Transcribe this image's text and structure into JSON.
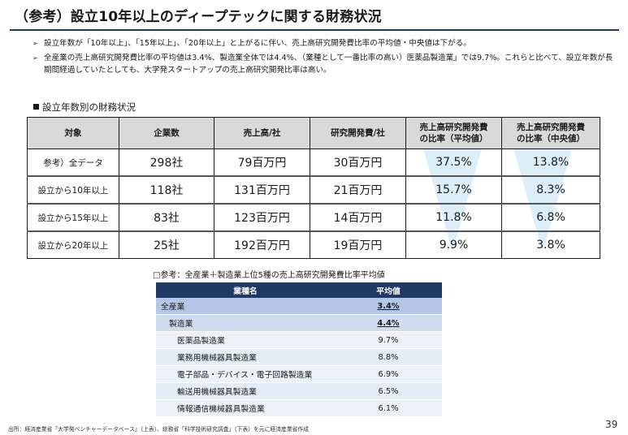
{
  "title": "（参考）設立10年以上のディープテックに関する財務状況",
  "bullets": [
    {
      "marker": "➢",
      "text": "設立年数が「10年以上」、「15年以上」、「20年以上」と上がるに伴い、売上高研究開発費比率の平均値・中央値は下がる。"
    },
    {
      "marker": "➢",
      "text": "全産業の売上高研究開発費比率の平均値は3.4%、製造業全体では4.4%、（業種として一番比率の高い）医薬品製造業」では9.7%。これらと比べて、設立年数が長期間経過していたとしても、大学発スタートアップの売上高研究開発比率は高い。"
    }
  ],
  "section_label": "設立年数別の財務状況",
  "main_table": {
    "headers": [
      "対象",
      "企業数",
      "売上高/社",
      "研究開発費/社",
      "売上高研究開発費\nの比率（平均値）",
      "売上高研究開発費\nの比率（中央値）"
    ],
    "rows": [
      [
        "参考）全データ",
        "298社",
        "79百万円",
        "30百万円",
        "37.5%",
        "13.8%"
      ],
      [
        "設立から10年以上",
        "118社",
        "131百万円",
        "21百万円",
        "15.7%",
        "8.3%"
      ],
      [
        "設立から15年以上",
        "83社",
        "123百万円",
        "14百万円",
        "11.8%",
        "6.8%"
      ],
      [
        "設立から20年以上",
        "25社",
        "192百万円",
        "19百万円",
        "9.9%",
        "3.8%"
      ]
    ]
  },
  "sub_title": "□参考：全産業＋製造業上位5種の売上高研究開発費比率平均値",
  "industry_table": {
    "headers": [
      "業種名",
      "平均値"
    ],
    "rows": [
      {
        "name": "全産業",
        "value": "3.4%",
        "level": 0,
        "emph": true
      },
      {
        "name": "製造業",
        "value": "4.4%",
        "level": 1,
        "emph": true
      },
      {
        "name": "医薬品製造業",
        "value": "9.7%",
        "level": 2,
        "emph": false
      },
      {
        "name": "業務用機械器具製造業",
        "value": "8.8%",
        "level": 2,
        "emph": false
      },
      {
        "name": "電子部品・デバイス・電子回路製造業",
        "value": "6.9%",
        "level": 2,
        "emph": false
      },
      {
        "name": "輸送用機械器具製造業",
        "value": "6.5%",
        "level": 2,
        "emph": false
      },
      {
        "name": "情報通信機械器具製造業",
        "value": "6.1%",
        "level": 2,
        "emph": false
      }
    ]
  },
  "source": "出所：経済産業省「大学発ベンチャーデータベース」（上表）、総務省「科学技術研究調査」（下表）を元に経済産業省作成",
  "page_number": "39",
  "colors": {
    "header_dark": "#1f3864",
    "header_gray": "#d9d9d9",
    "trend_arrow": "#dceef7"
  }
}
